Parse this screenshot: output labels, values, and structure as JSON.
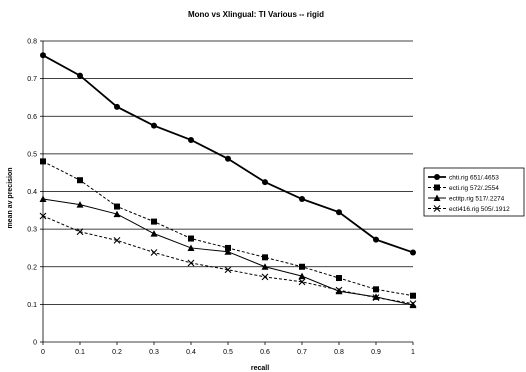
{
  "chart_data": {
    "type": "line",
    "title": "Mono vs Xlingual: TI Various -- rigid",
    "xlabel": "recall",
    "ylabel": "mean av precision",
    "x": [
      0,
      0.1,
      0.2,
      0.3,
      0.4,
      0.5,
      0.6,
      0.7,
      0.8,
      0.9,
      1
    ],
    "x_tick_labels": [
      "0",
      "0.1",
      "0.2",
      "0.3",
      "0.4",
      "0.5",
      "0.6",
      "0.7",
      "0.8",
      "0.9",
      "1"
    ],
    "xlim": [
      0,
      1
    ],
    "ylim": [
      0,
      0.8
    ],
    "y_ticks": [
      0,
      0.1,
      0.2,
      0.3,
      0.4,
      0.5,
      0.6,
      0.7,
      0.8
    ],
    "y_tick_labels": [
      "0",
      "0.1",
      "0.2",
      "0.3",
      "0.4",
      "0.5",
      "0.6",
      "0.7",
      "0.8"
    ],
    "grid": "horizontal",
    "legend_position": "right",
    "series": [
      {
        "name": "chti.rig 651/.4653",
        "marker": "circle",
        "line": "solid",
        "stroke_width": 1.8,
        "color": "#000000",
        "values": [
          0.762,
          0.708,
          0.625,
          0.575,
          0.537,
          0.487,
          0.425,
          0.38,
          0.345,
          0.272,
          0.238
        ]
      },
      {
        "name": "ecti.rig 572/.2554",
        "marker": "square",
        "line": "dashed",
        "stroke_width": 1,
        "color": "#000000",
        "values": [
          0.48,
          0.43,
          0.36,
          0.32,
          0.275,
          0.25,
          0.225,
          0.2,
          0.17,
          0.14,
          0.123
        ]
      },
      {
        "name": "ectitp.rig 517/.2274",
        "marker": "triangle",
        "line": "solid",
        "stroke_width": 1,
        "color": "#000000",
        "values": [
          0.38,
          0.365,
          0.34,
          0.288,
          0.25,
          0.24,
          0.2,
          0.175,
          0.135,
          0.12,
          0.098
        ]
      },
      {
        "name": "ecti416.rig 505/.1912",
        "marker": "x",
        "line": "dashed",
        "stroke_width": 1,
        "color": "#000000",
        "values": [
          0.335,
          0.293,
          0.27,
          0.238,
          0.21,
          0.192,
          0.173,
          0.16,
          0.138,
          0.118,
          0.102
        ]
      }
    ]
  }
}
